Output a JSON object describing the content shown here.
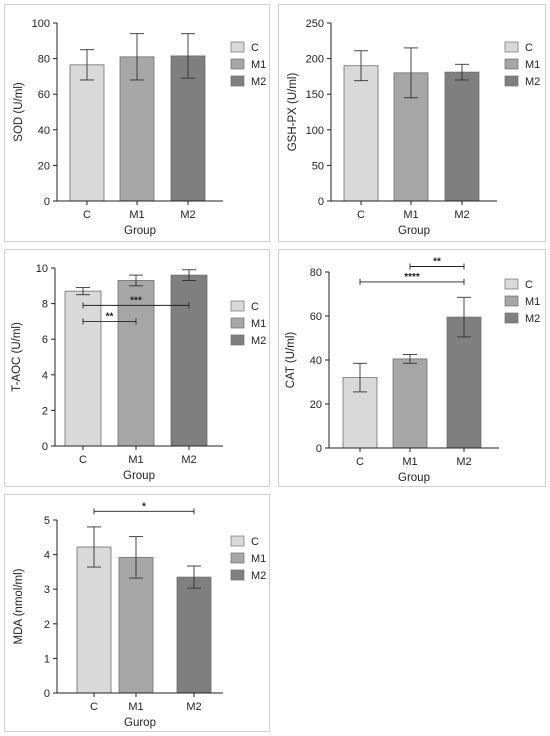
{
  "chart_data": [
    {
      "type": "bar",
      "categories": [
        "C",
        "M1",
        "M2"
      ],
      "values": [
        76.5,
        81.0,
        81.5
      ],
      "errors": [
        8.5,
        13.0,
        12.5
      ],
      "ylabel": "SOD (U/ml)",
      "xlabel": "Group",
      "ylim": [
        0,
        100
      ],
      "yticks": [
        "0",
        "20",
        "40",
        "60",
        "80",
        "100"
      ],
      "legend": [
        "C",
        "M1",
        "M2"
      ],
      "colors": [
        "#d9d9d9",
        "#a6a6a6",
        "#7f7f7f"
      ],
      "significance": []
    },
    {
      "type": "bar",
      "categories": [
        "C",
        "M1",
        "M2"
      ],
      "values": [
        190,
        180,
        181
      ],
      "errors": [
        21,
        35,
        11
      ],
      "ylabel": "GSH-PX (U/ml)",
      "xlabel": "Group",
      "ylim": [
        0,
        250
      ],
      "yticks": [
        "0",
        "50",
        "100",
        "150",
        "200",
        "250"
      ],
      "legend": [
        "C",
        "M1",
        "M2"
      ],
      "colors": [
        "#d9d9d9",
        "#a6a6a6",
        "#7f7f7f"
      ],
      "significance": []
    },
    {
      "type": "bar",
      "categories": [
        "C",
        "M1",
        "M2"
      ],
      "values": [
        8.7,
        9.3,
        9.6
      ],
      "errors": [
        0.2,
        0.3,
        0.3
      ],
      "ylabel": "T-AOC (U/ml)",
      "xlabel": "Group",
      "ylim": [
        0,
        10
      ],
      "yticks": [
        "0",
        "2",
        "4",
        "6",
        "8",
        "10"
      ],
      "legend": [
        "C",
        "M1",
        "M2"
      ],
      "colors": [
        "#d9d9d9",
        "#a6a6a6",
        "#7f7f7f"
      ],
      "significance": [
        {
          "from": 0,
          "to": 2,
          "y": 7.9,
          "label": "***"
        },
        {
          "from": 0,
          "to": 1,
          "y": 7.0,
          "label": "**"
        }
      ]
    },
    {
      "type": "bar",
      "categories": [
        "C",
        "M1",
        "M2"
      ],
      "values": [
        32,
        40.5,
        59.5
      ],
      "errors": [
        6.5,
        2.0,
        9.0
      ],
      "ylabel": "CAT (U/ml)",
      "xlabel": "Group",
      "ylim": [
        0,
        80
      ],
      "yticks": [
        "0",
        "20",
        "40",
        "60",
        "80"
      ],
      "legend": [
        "C",
        "M1",
        "M2"
      ],
      "colors": [
        "#d9d9d9",
        "#a6a6a6",
        "#7f7f7f"
      ],
      "significance": [
        {
          "from": 1,
          "to": 2,
          "y": 82.5,
          "label": "**"
        },
        {
          "from": 0,
          "to": 2,
          "y": 75.5,
          "label": "****"
        }
      ]
    },
    {
      "type": "bar",
      "categories": [
        "C",
        "M1",
        "M2"
      ],
      "values": [
        4.22,
        3.92,
        3.35
      ],
      "errors": [
        0.58,
        0.6,
        0.32
      ],
      "ylabel": "MDA (nmol/ml)",
      "xlabel": "Gurop",
      "ylim": [
        0,
        5
      ],
      "yticks": [
        "0",
        "1",
        "2",
        "3",
        "4",
        "5"
      ],
      "legend": [
        "C",
        "M1",
        "M2"
      ],
      "colors": [
        "#d9d9d9",
        "#a6a6a6",
        "#7f7f7f"
      ],
      "significance": [
        {
          "from": 0,
          "to": 2,
          "y": 5.25,
          "label": "*"
        }
      ]
    }
  ]
}
